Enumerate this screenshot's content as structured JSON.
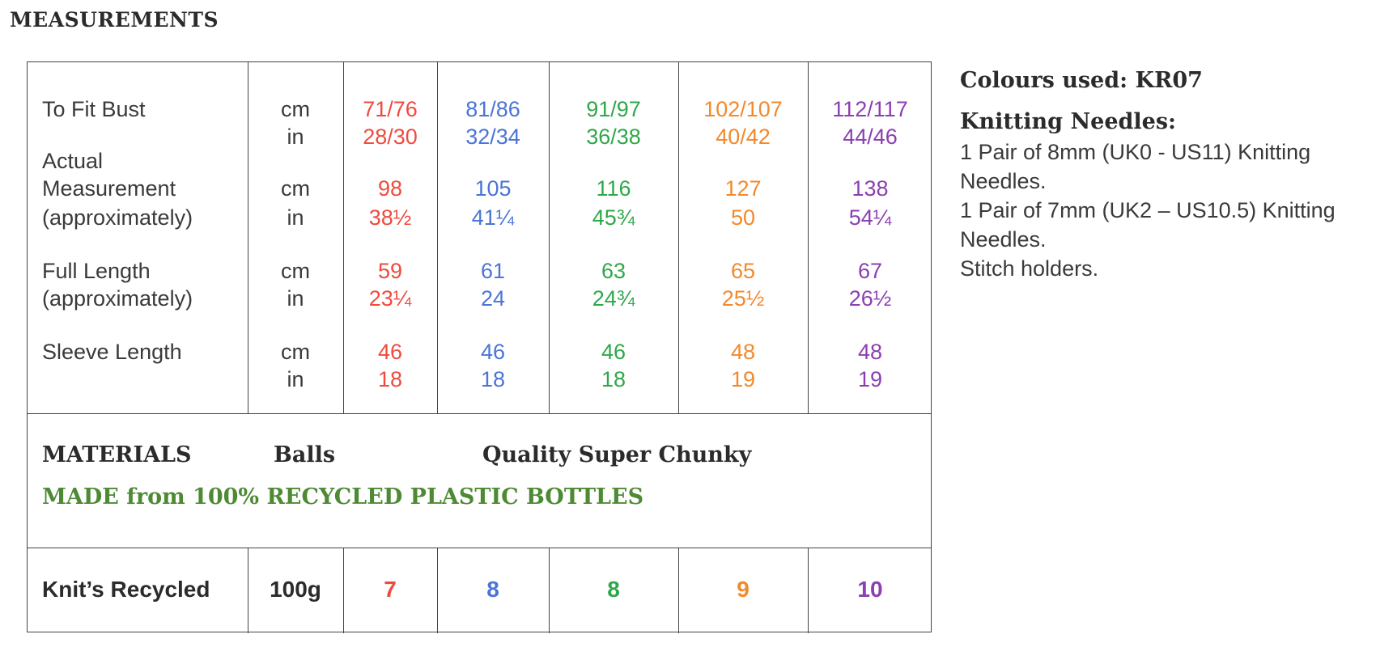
{
  "heading": "MEASUREMENTS",
  "colors": {
    "size1": "#f04a3e",
    "size2": "#4a74d6",
    "size3": "#2fa84a",
    "size4": "#f2892c",
    "size5": "#8b3fb0",
    "green_note": "#4e8a34"
  },
  "rows": {
    "bust": {
      "label": "To Fit Bust",
      "cm_unit": "cm",
      "in_unit": "in",
      "cm": [
        "71/76",
        "81/86",
        "91/97",
        "102/107",
        "112/117"
      ],
      "in": [
        "28/30",
        "32/34",
        "36/38",
        "40/42",
        "44/46"
      ]
    },
    "actual": {
      "label_1": "Actual",
      "label_2": "Measurement",
      "label_3": "(approximately)",
      "cm_unit": "cm",
      "in_unit": "in",
      "cm": [
        "98",
        "105",
        "116",
        "127",
        "138"
      ],
      "in": [
        "38½",
        "41¼",
        "45¾",
        "50",
        "54¼"
      ]
    },
    "length": {
      "label_1": "Full Length",
      "label_2": "(approximately)",
      "cm_unit": "cm",
      "in_unit": "in",
      "cm": [
        "59",
        "61",
        "63",
        "65",
        "67"
      ],
      "in": [
        "23¼",
        "24",
        "24¾",
        "25½",
        "26½"
      ]
    },
    "sleeve": {
      "label": "Sleeve Length",
      "cm_unit": "cm",
      "in_unit": "in",
      "cm": [
        "46",
        "46",
        "46",
        "48",
        "48"
      ],
      "in": [
        "18",
        "18",
        "18",
        "19",
        "19"
      ]
    }
  },
  "materials": {
    "label": "MATERIALS",
    "balls_label": "Balls",
    "quality_label": "Quality  Super Chunky",
    "recycled_note": "MADE from 100% RECYCLED PLASTIC BOTTLES"
  },
  "yarn": {
    "name": "Knit’s Recycled",
    "weight": "100g",
    "balls": [
      "7",
      "8",
      "8",
      "9",
      "10"
    ]
  },
  "side": {
    "colours_used": "Colours used: KR07",
    "needles_title": "Knitting Needles:",
    "lines": [
      "1 Pair of 8mm (UK0 - US11) Knitting",
      "Needles.",
      "1 Pair of 7mm (UK2 – US10.5) Knitting",
      "Needles.",
      "Stitch holders."
    ]
  }
}
